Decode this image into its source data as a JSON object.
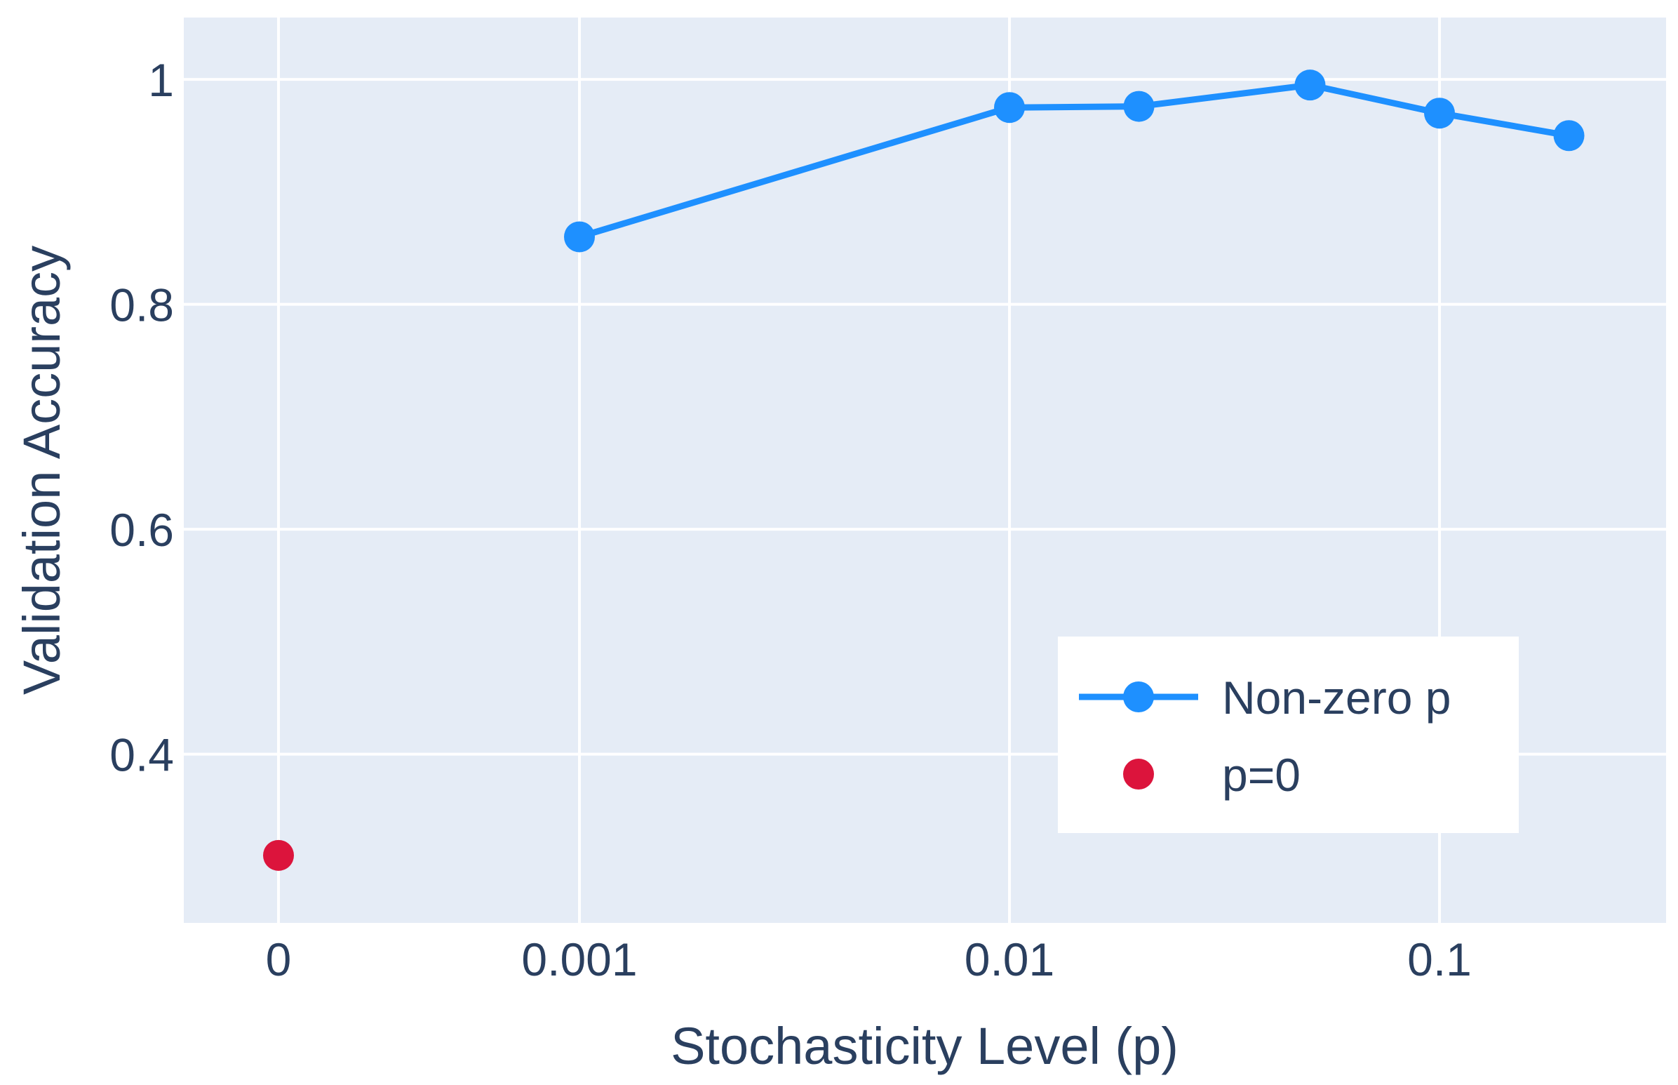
{
  "chart_data": {
    "type": "line",
    "title": "",
    "xlabel": "Stochasticity Level (p)",
    "ylabel": "Validation Accuracy",
    "x_ticks": [
      {
        "value": 0,
        "label": "0"
      },
      {
        "value": 0.001,
        "label": "0.001"
      },
      {
        "value": 0.01,
        "label": "0.01"
      },
      {
        "value": 0.1,
        "label": "0.1"
      }
    ],
    "y_ticks": [
      {
        "value": 0.4,
        "label": "0.4"
      },
      {
        "value": 0.6,
        "label": "0.6"
      },
      {
        "value": 0.8,
        "label": "0.8"
      },
      {
        "value": 1.0,
        "label": "1"
      }
    ],
    "xlim": [
      0,
      0.35
    ],
    "ylim": [
      0.25,
      1.055
    ],
    "x_scale": "log (p=0 shown at leftmost tick)",
    "grid": true,
    "legend_position": "bottom-right",
    "background_color": "#e5ecf6",
    "series": [
      {
        "name": "Non-zero p",
        "mode": "lines+markers",
        "color": "#1e90ff",
        "x": [
          0.001,
          0.01,
          0.02,
          0.05,
          0.1,
          0.2
        ],
        "y": [
          0.86,
          0.975,
          0.976,
          0.995,
          0.97,
          0.95
        ]
      },
      {
        "name": "p=0",
        "mode": "markers",
        "color": "#dc143c",
        "x": [
          0
        ],
        "y": [
          0.31
        ]
      }
    ]
  }
}
